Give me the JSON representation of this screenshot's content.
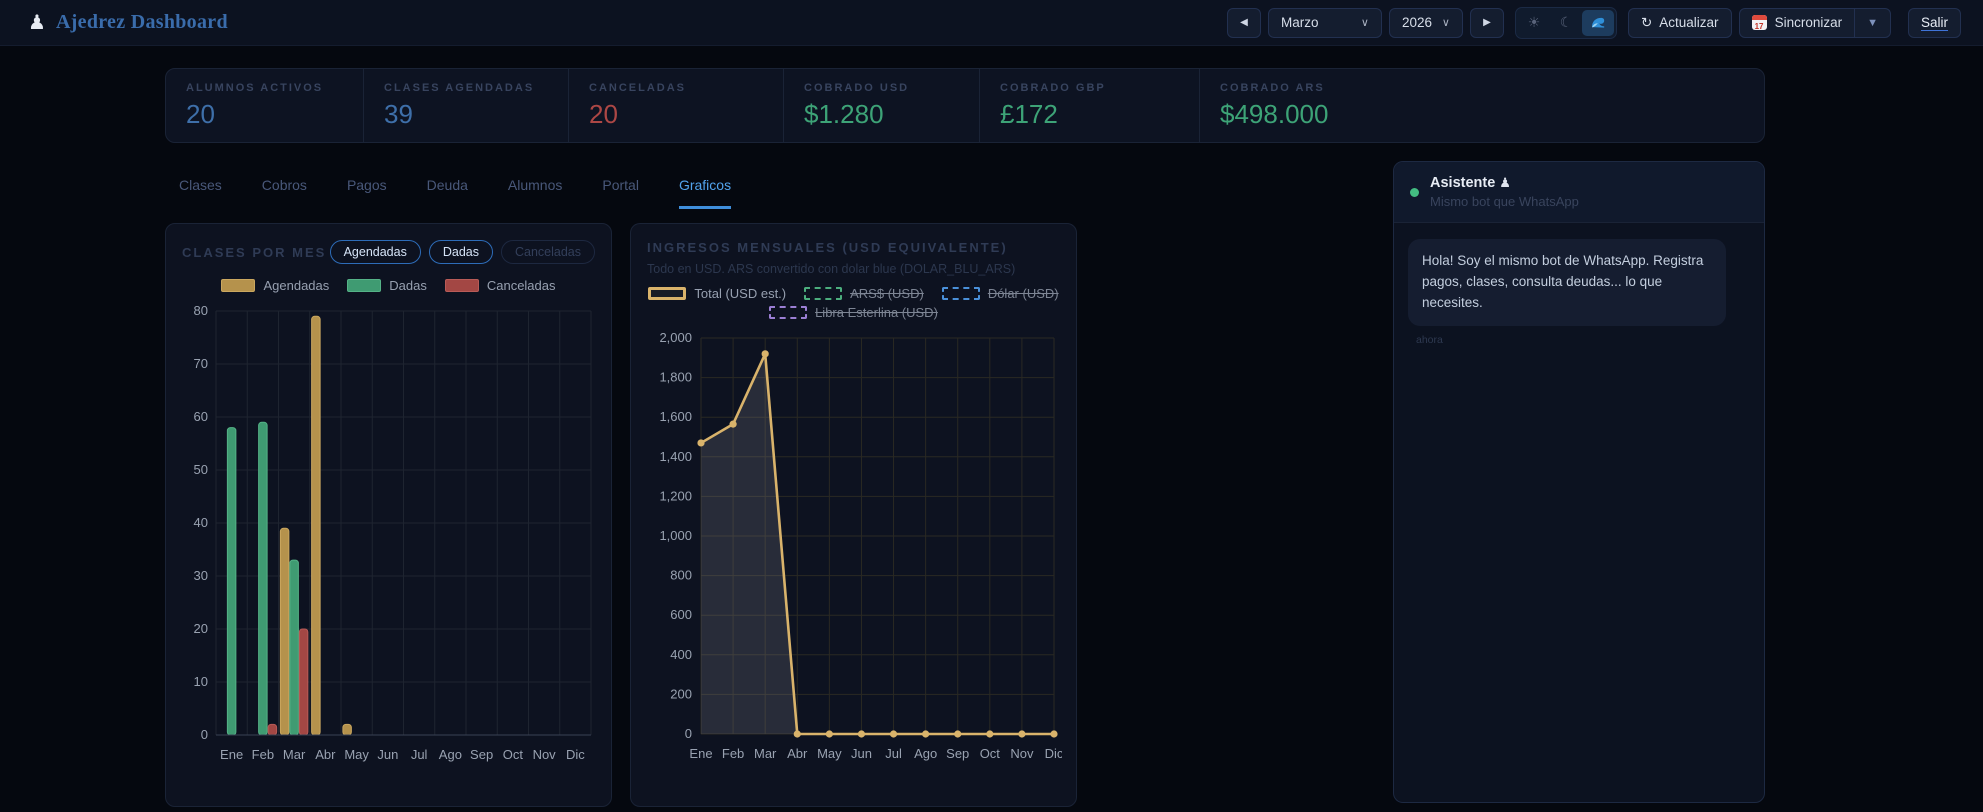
{
  "navbar": {
    "pawn_icon": "♟",
    "title": "Ajedrez Dashboard",
    "prev_icon": "◀",
    "month": "Marzo",
    "year": "2026",
    "select_caret": "∨",
    "next_icon": "▶",
    "theme_sun_icon": "☀",
    "theme_moon_icon": "☾",
    "refresh_icon": "↻",
    "refresh_label": "Actualizar",
    "sync_label": "Sincronizar",
    "sync_icon_day": "17",
    "sync_caret": "▼",
    "logout_label": "Salir"
  },
  "stats": [
    {
      "label": "ALUMNOS ACTIVOS",
      "value": "20"
    },
    {
      "label": "CLASES AGENDADAS",
      "value": "39"
    },
    {
      "label": "CANCELADAS",
      "value": "20"
    },
    {
      "label": "COBRADO USD",
      "value": "$1.280"
    },
    {
      "label": "COBRADO GBP",
      "value": "£172"
    },
    {
      "label": "COBRADO ARS",
      "value": "$498.000"
    }
  ],
  "tabs": [
    {
      "label": "Clases"
    },
    {
      "label": "Cobros"
    },
    {
      "label": "Pagos"
    },
    {
      "label": "Deuda"
    },
    {
      "label": "Alumnos"
    },
    {
      "label": "Portal"
    },
    {
      "label": "Graficos"
    }
  ],
  "assistant": {
    "title": "Asistente",
    "title_icon": "♟",
    "subtitle": "Mismo bot que WhatsApp",
    "message": "Hola! Soy el mismo bot de WhatsApp. Registra pagos, clases, consulta deudas... lo que necesites.",
    "timestamp": "ahora"
  },
  "colors": {
    "accent_blue": "#52a3ec",
    "stat_blue": "#3e6fa9",
    "stat_red": "#ac4745",
    "stat_green": "#3da377",
    "assistant_dot": "#43bd82",
    "line_total": "#d9b36b"
  },
  "chart_data": [
    {
      "type": "bar",
      "title": "CLASES POR MES",
      "categories": [
        "Ene",
        "Feb",
        "Mar",
        "Abr",
        "May",
        "Jun",
        "Jul",
        "Ago",
        "Sep",
        "Oct",
        "Nov",
        "Dic"
      ],
      "series": [
        {
          "name": "Agendadas",
          "color": "#b5924c",
          "border": "#caa75f",
          "values": [
            0,
            0,
            39,
            79,
            2,
            0,
            0,
            0,
            0,
            0,
            0,
            0
          ]
        },
        {
          "name": "Dadas",
          "color": "#3f9b72",
          "border": "#55b287",
          "values": [
            58,
            59,
            33,
            0,
            0,
            0,
            0,
            0,
            0,
            0,
            0,
            0
          ]
        },
        {
          "name": "Canceladas",
          "color": "#a34744",
          "border": "#b85b57",
          "values": [
            0,
            2,
            20,
            0,
            0,
            0,
            0,
            0,
            0,
            0,
            0,
            0
          ]
        }
      ],
      "ylim": [
        0,
        80
      ],
      "ytick_step": 10,
      "grid": true,
      "legend_position": "top",
      "toggle_buttons": [
        {
          "label": "Agendadas",
          "enabled": true
        },
        {
          "label": "Dadas",
          "enabled": true
        },
        {
          "label": "Canceladas",
          "enabled": false
        }
      ]
    },
    {
      "type": "line",
      "title": "INGRESOS MENSUALES (USD EQUIVALENTE)",
      "subtitle": "Todo en USD. ARS convertido con dolar blue (DOLAR_BLU_ARS)",
      "categories": [
        "Ene",
        "Feb",
        "Mar",
        "Abr",
        "May",
        "Jun",
        "Jul",
        "Ago",
        "Sep",
        "Oct",
        "Nov",
        "Dic"
      ],
      "series": [
        {
          "name": "Total (USD est.)",
          "color": "#d9b36b",
          "visible": true,
          "area": true,
          "values": [
            1470,
            1565,
            1920,
            0,
            0,
            0,
            0,
            0,
            0,
            0,
            0,
            0
          ]
        },
        {
          "name": "ARS$ (USD)",
          "color": "#4cae7e",
          "visible": false
        },
        {
          "name": "Dólar (USD)",
          "color": "#4a90d9",
          "visible": false
        },
        {
          "name": "Libra Esterlina (USD)",
          "color": "#9b7fd4",
          "visible": false
        }
      ],
      "ylim": [
        0,
        2000
      ],
      "ytick_step": 200,
      "grid": true,
      "legend_position": "top"
    }
  ]
}
